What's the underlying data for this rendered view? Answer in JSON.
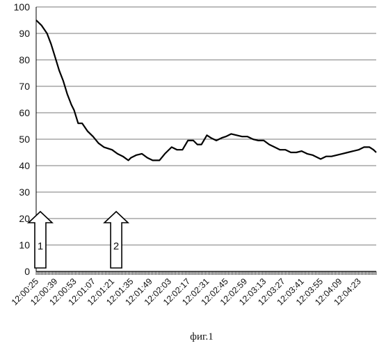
{
  "chart_data": {
    "type": "line",
    "caption": "фиг.1",
    "ylim": [
      0,
      100
    ],
    "y_ticks": [
      0,
      10,
      20,
      30,
      40,
      50,
      60,
      70,
      80,
      90,
      100
    ],
    "x_tick_labels": [
      "12:00:25",
      "12:00:39",
      "12:00:53",
      "12:01:07",
      "12:01:21",
      "12:01:35",
      "12:01:49",
      "12:02:03",
      "12:02:17",
      "12:02:31",
      "12:02:45",
      "12:02:59",
      "12:03:13",
      "12:03:27",
      "12:03:41",
      "12:03:55",
      "12:04:09",
      "12:04:23"
    ],
    "grid": "horizontal",
    "series": [
      {
        "color": "#000000",
        "points": [
          [
            "12:00:25",
            95
          ],
          [
            "12:00:29",
            93
          ],
          [
            "12:00:33",
            90
          ],
          [
            "12:00:36",
            86
          ],
          [
            "12:00:39",
            81
          ],
          [
            "12:00:42",
            76
          ],
          [
            "12:00:45",
            72
          ],
          [
            "12:00:48",
            67
          ],
          [
            "12:00:51",
            63
          ],
          [
            "12:00:53",
            61
          ],
          [
            "12:00:56",
            56
          ],
          [
            "12:00:59",
            56
          ],
          [
            "12:01:03",
            53
          ],
          [
            "12:01:07",
            51
          ],
          [
            "12:01:11",
            48.5
          ],
          [
            "12:01:15",
            47
          ],
          [
            "12:01:21",
            46
          ],
          [
            "12:01:25",
            44.5
          ],
          [
            "12:01:29",
            43.5
          ],
          [
            "12:01:33",
            42
          ],
          [
            "12:01:35",
            43
          ],
          [
            "12:01:39",
            44
          ],
          [
            "12:01:43",
            44.5
          ],
          [
            "12:01:47",
            43
          ],
          [
            "12:01:51",
            42
          ],
          [
            "12:01:56",
            42
          ],
          [
            "12:02:00",
            44.5
          ],
          [
            "12:02:05",
            47
          ],
          [
            "12:02:09",
            46
          ],
          [
            "12:02:13",
            46
          ],
          [
            "12:02:17",
            49.5
          ],
          [
            "12:02:21",
            49.5
          ],
          [
            "12:02:24",
            48
          ],
          [
            "12:02:27",
            48
          ],
          [
            "12:02:31",
            51.5
          ],
          [
            "12:02:34",
            50.5
          ],
          [
            "12:02:38",
            49.5
          ],
          [
            "12:02:42",
            50.5
          ],
          [
            "12:02:45",
            51
          ],
          [
            "12:02:49",
            52
          ],
          [
            "12:02:53",
            51.5
          ],
          [
            "12:02:57",
            51
          ],
          [
            "12:03:01",
            51
          ],
          [
            "12:03:05",
            50
          ],
          [
            "12:03:09",
            49.5
          ],
          [
            "12:03:13",
            49.5
          ],
          [
            "12:03:17",
            48
          ],
          [
            "12:03:21",
            47
          ],
          [
            "12:03:25",
            46
          ],
          [
            "12:03:29",
            46
          ],
          [
            "12:03:33",
            45
          ],
          [
            "12:03:37",
            45
          ],
          [
            "12:03:41",
            45.5
          ],
          [
            "12:03:45",
            44.5
          ],
          [
            "12:03:49",
            44
          ],
          [
            "12:03:53",
            43
          ],
          [
            "12:03:55",
            42.5
          ],
          [
            "12:03:59",
            43.5
          ],
          [
            "12:04:03",
            43.5
          ],
          [
            "12:04:07",
            44
          ],
          [
            "12:04:11",
            44.5
          ],
          [
            "12:04:15",
            45
          ],
          [
            "12:04:19",
            45.5
          ],
          [
            "12:04:23",
            46
          ],
          [
            "12:04:27",
            47
          ],
          [
            "12:04:31",
            47
          ],
          [
            "12:04:34",
            46
          ],
          [
            "12:04:36",
            45
          ]
        ]
      }
    ],
    "annotations": [
      {
        "type": "up-arrow",
        "label": "1",
        "at": "12:00:25",
        "from_y": 0,
        "to_y": 20
      },
      {
        "type": "up-arrow",
        "label": "2",
        "at": "12:01:21",
        "from_y": 0,
        "to_y": 20
      }
    ]
  }
}
